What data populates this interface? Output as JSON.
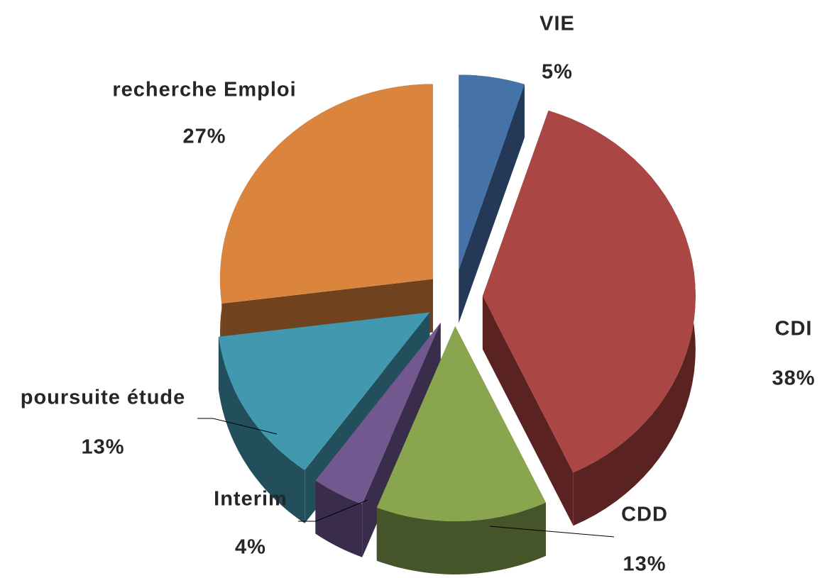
{
  "chart_data": {
    "type": "pie",
    "categories": [
      "VIE",
      "CDI",
      "CDD",
      "Interim",
      "poursuite étude",
      "recherche Emploi"
    ],
    "values": [
      5,
      38,
      13,
      4,
      13,
      27
    ],
    "value_labels": [
      "5%",
      "38%",
      "13%",
      "4%",
      "13%",
      "27%"
    ],
    "colors": [
      "#4573a8",
      "#aa4745",
      "#89a54e",
      "#71588f",
      "#4198af",
      "#db843d"
    ],
    "side_colors": [
      "#233957",
      "#5a2322",
      "#465429",
      "#3a2d4b",
      "#224f5b",
      "#70421e"
    ]
  }
}
